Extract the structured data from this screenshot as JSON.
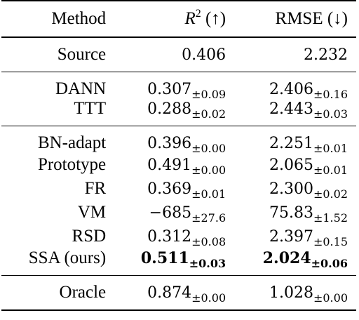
{
  "header": {
    "method": "Method",
    "r2_symbol": "R",
    "r2_sup": "2",
    "r2_arrow": "(↑)",
    "rmse": "RMSE (↓)"
  },
  "groups": [
    {
      "rows": [
        {
          "method": "Source",
          "r2": "0.406",
          "r2_std": "",
          "rmse": "2.232",
          "rmse_std": "",
          "bold": false
        }
      ]
    },
    {
      "rows": [
        {
          "method": "DANN",
          "r2": "0.307",
          "r2_std": "±0.09",
          "rmse": "2.406",
          "rmse_std": "±0.16",
          "bold": false
        },
        {
          "method": "TTT",
          "r2": "0.288",
          "r2_std": "±0.02",
          "rmse": "2.443",
          "rmse_std": "±0.03",
          "bold": false
        }
      ]
    },
    {
      "rows": [
        {
          "method": "BN-adapt",
          "r2": "0.396",
          "r2_std": "±0.00",
          "rmse": "2.251",
          "rmse_std": "±0.01",
          "bold": false
        },
        {
          "method": "Prototype",
          "r2": "0.491",
          "r2_std": "±0.00",
          "rmse": "2.065",
          "rmse_std": "±0.01",
          "bold": false
        },
        {
          "method": "FR",
          "r2": "0.369",
          "r2_std": "±0.01",
          "rmse": "2.300",
          "rmse_std": "±0.02",
          "bold": false
        },
        {
          "method": "VM",
          "r2": "−685",
          "r2_std": "±27.6",
          "rmse": "75.83",
          "rmse_std": "±1.52",
          "bold": false
        },
        {
          "method": "RSD",
          "r2": "0.312",
          "r2_std": "±0.08",
          "rmse": "2.397",
          "rmse_std": "±0.15",
          "bold": false
        },
        {
          "method": "SSA (ours)",
          "r2": "0.511",
          "r2_std": "±0.03",
          "rmse": "2.024",
          "rmse_std": "±0.06",
          "bold": true
        }
      ]
    },
    {
      "rows": [
        {
          "method": "Oracle",
          "r2": "0.874",
          "r2_std": "±0.00",
          "rmse": "1.028",
          "rmse_std": "±0.00",
          "bold": false
        }
      ]
    }
  ]
}
